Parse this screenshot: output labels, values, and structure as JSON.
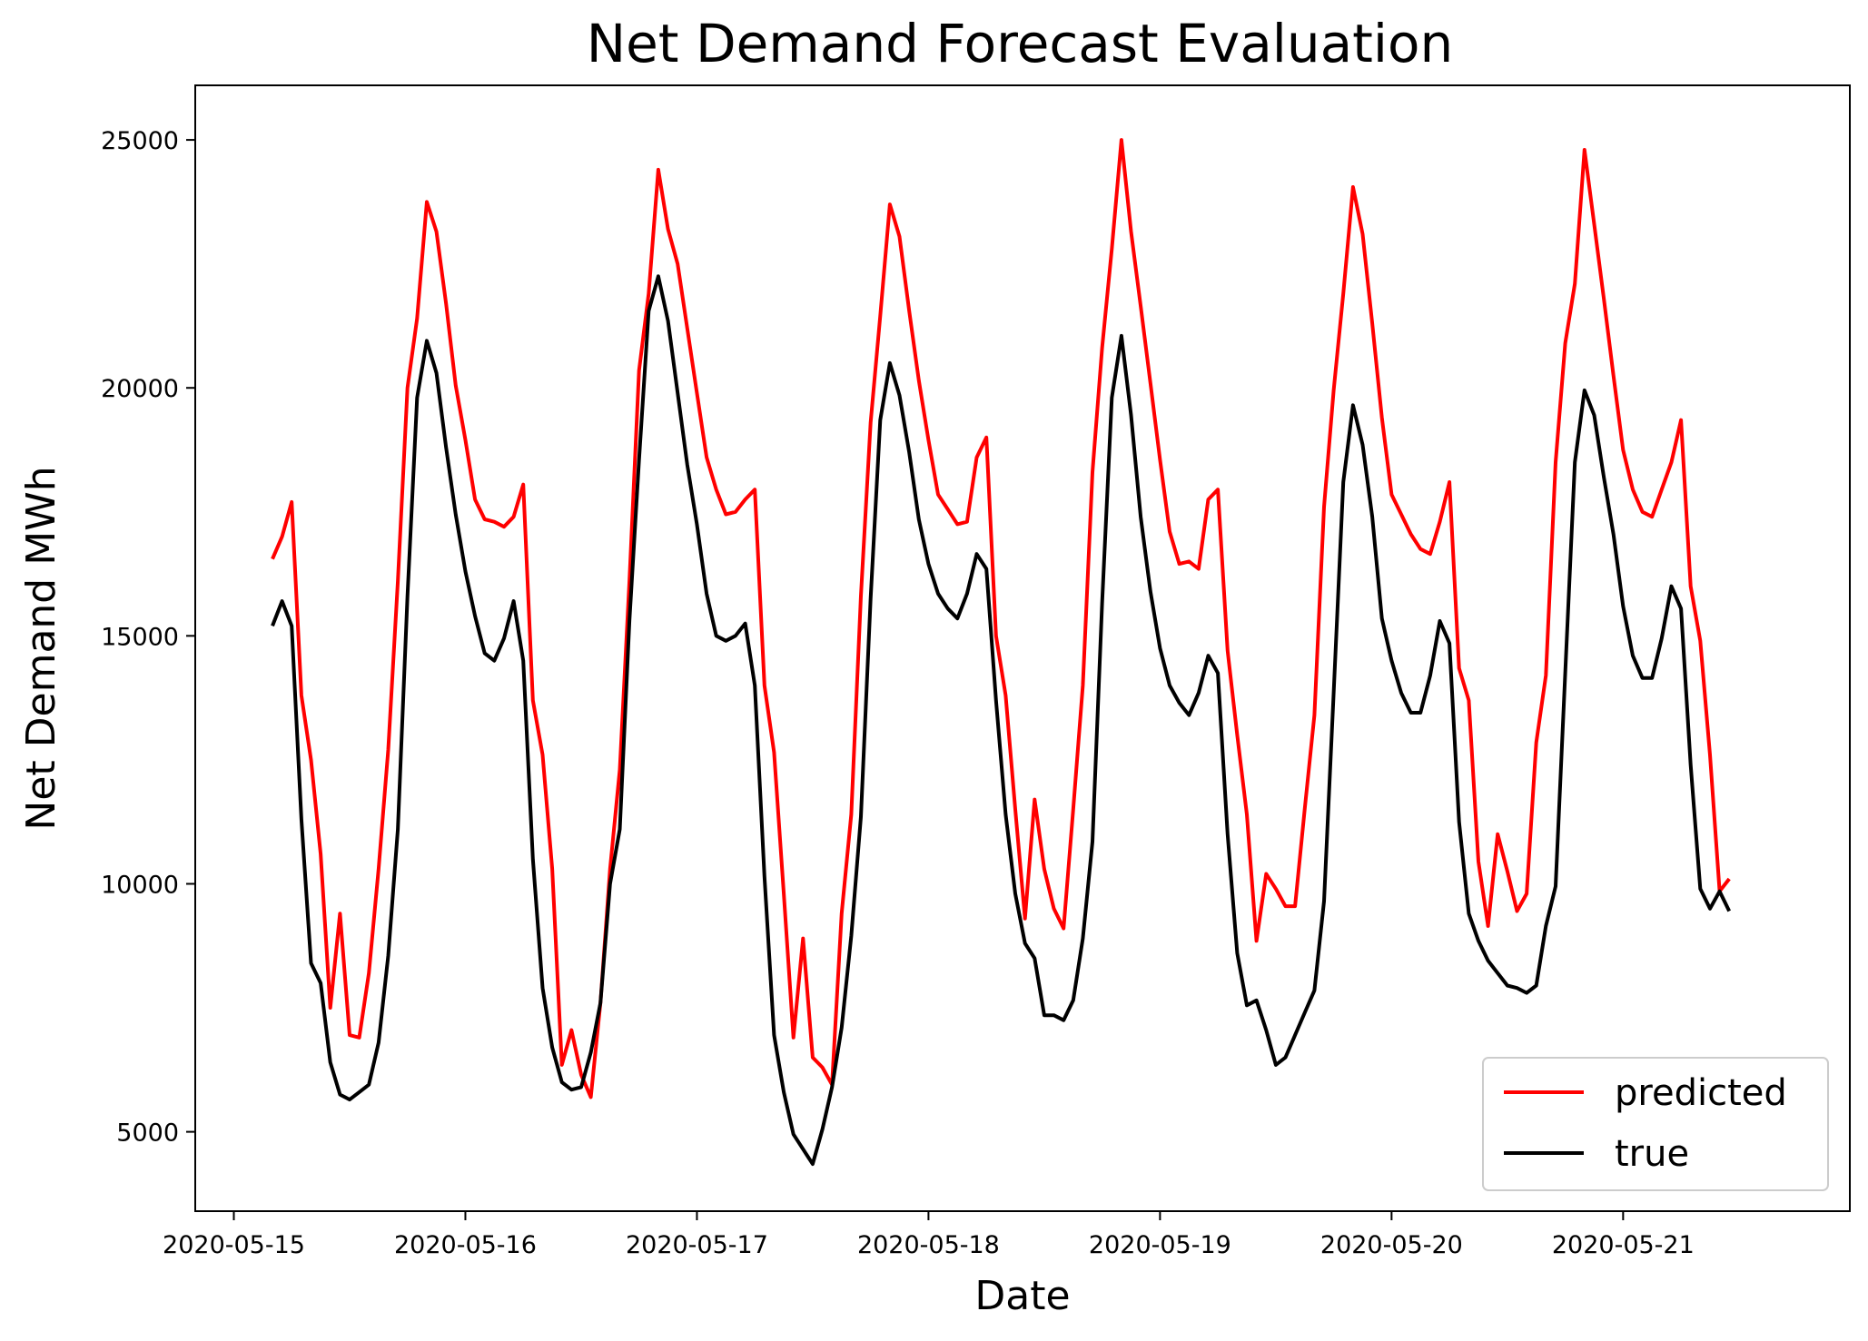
{
  "chart_data": {
    "type": "line",
    "title": "Net Demand Forecast Evaluation",
    "xlabel": "Date",
    "ylabel": "Net Demand MWh",
    "x_start": "2020-05-15 04:00",
    "x_step_hours": 1,
    "xlim": [
      "2020-05-14 20:00",
      "2020-05-21 23:30"
    ],
    "ylim": [
      3400,
      26100
    ],
    "x_ticks": [
      "2020-05-15",
      "2020-05-16",
      "2020-05-17",
      "2020-05-18",
      "2020-05-19",
      "2020-05-20",
      "2020-05-21"
    ],
    "y_ticks": [
      5000,
      10000,
      15000,
      20000,
      25000
    ],
    "grid": false,
    "legend_position": "lower-right",
    "series": [
      {
        "name": "predicted",
        "color": "#ff0000",
        "values": [
          16550,
          17000,
          17700,
          13800,
          12500,
          10600,
          7500,
          9400,
          6950,
          6900,
          8200,
          10300,
          12700,
          16100,
          20000,
          21400,
          23750,
          23150,
          21700,
          20050,
          18950,
          17750,
          17350,
          17300,
          17200,
          17400,
          18050,
          13700,
          12600,
          10300,
          6350,
          7050,
          6150,
          5700,
          7600,
          10300,
          12300,
          16100,
          20350,
          21900,
          24400,
          23200,
          22500,
          21200,
          19900,
          18600,
          17950,
          17450,
          17500,
          17750,
          17950,
          14000,
          12650,
          9800,
          6900,
          8900,
          6500,
          6300,
          5950,
          9400,
          11400,
          15800,
          19300,
          21450,
          23700,
          23050,
          21550,
          20150,
          18950,
          17850,
          17550,
          17250,
          17300,
          18600,
          19000,
          15000,
          13800,
          11500,
          9300,
          11700,
          10300,
          9500,
          9100,
          11500,
          14000,
          18300,
          20800,
          22800,
          25000,
          23150,
          21650,
          20100,
          18550,
          17100,
          16450,
          16500,
          16350,
          17750,
          17950,
          14700,
          13000,
          11400,
          8850,
          10200,
          9900,
          9550,
          9550,
          11500,
          13400,
          17600,
          19950,
          21900,
          24050,
          23100,
          21300,
          19400,
          17850,
          17450,
          17050,
          16750,
          16650,
          17300,
          18100,
          14350,
          13700,
          10450,
          9150,
          11000,
          10250,
          9450,
          9800,
          12850,
          14200,
          18500,
          20900,
          22100,
          24800,
          23300,
          21800,
          20250,
          18750,
          17950,
          17500,
          17400,
          17950,
          18500,
          19350,
          16000,
          14900,
          12600,
          9850,
          10100
        ]
      },
      {
        "name": "true",
        "color": "#000000",
        "values": [
          15200,
          15700,
          15200,
          11300,
          8400,
          8000,
          6400,
          5750,
          5650,
          5800,
          5950,
          6800,
          8550,
          11100,
          15800,
          19800,
          20950,
          20300,
          18800,
          17450,
          16300,
          15400,
          14650,
          14500,
          14950,
          15700,
          14500,
          10500,
          7900,
          6700,
          6000,
          5850,
          5900,
          6600,
          7600,
          10000,
          11100,
          15300,
          18550,
          21550,
          22250,
          21350,
          19900,
          18450,
          17250,
          15850,
          15000,
          14900,
          15000,
          15250,
          14000,
          10150,
          6950,
          5800,
          4950,
          4650,
          4350,
          5050,
          5900,
          7100,
          8950,
          11350,
          15750,
          19350,
          20500,
          19850,
          18700,
          17350,
          16450,
          15850,
          15550,
          15350,
          15850,
          16650,
          16350,
          13700,
          11400,
          9800,
          8800,
          8500,
          7350,
          7350,
          7250,
          7650,
          8900,
          10850,
          15650,
          19800,
          21050,
          19450,
          17400,
          15900,
          14750,
          14000,
          13650,
          13400,
          13850,
          14600,
          14250,
          11000,
          8600,
          7550,
          7650,
          7050,
          6350,
          6500,
          6950,
          7400,
          7850,
          9650,
          13850,
          18100,
          19650,
          18850,
          17400,
          15350,
          14500,
          13850,
          13450,
          13450,
          14200,
          15300,
          14850,
          11250,
          9400,
          8850,
          8450,
          8200,
          7950,
          7900,
          7800,
          7950,
          9150,
          9950,
          14250,
          18500,
          19950,
          19450,
          18200,
          17050,
          15600,
          14600,
          14150,
          14150,
          14950,
          16000,
          15550,
          12400,
          9900,
          9500,
          9850,
          9450
        ]
      }
    ]
  }
}
